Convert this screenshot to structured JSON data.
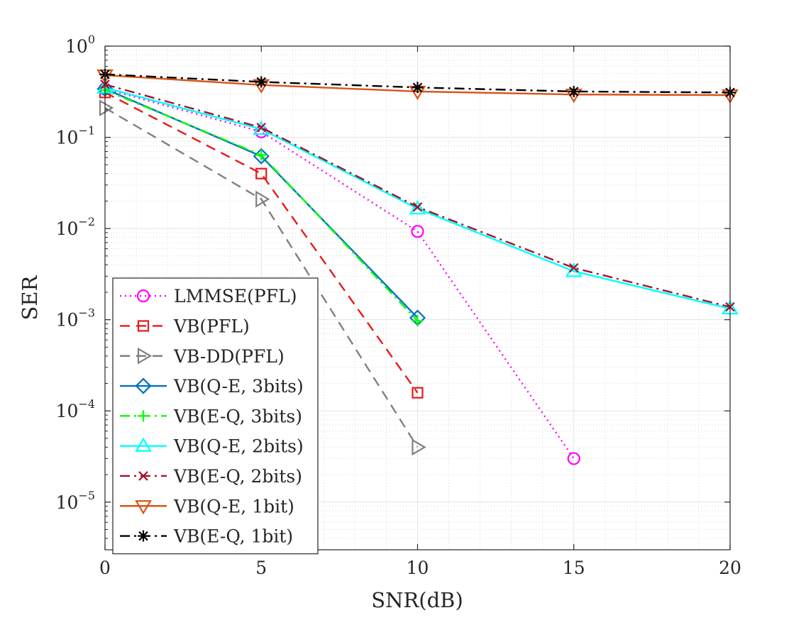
{
  "chart_data": {
    "type": "line",
    "title": "",
    "xlabel": "SNR(dB)",
    "ylabel": "SER",
    "xscale": "linear",
    "yscale": "log",
    "xlim": [
      0,
      20
    ],
    "ylim": [
      3e-06,
      1
    ],
    "grid": true,
    "minor_grid": true,
    "legend_position": "bottom-left",
    "x_ticks": [
      {
        "value": 0,
        "label": "0"
      },
      {
        "value": 5,
        "label": "5"
      },
      {
        "value": 10,
        "label": "10"
      },
      {
        "value": 15,
        "label": "15"
      },
      {
        "value": 20,
        "label": "20"
      }
    ],
    "y_ticks": [
      {
        "value": 1,
        "base": "10",
        "exp": "0"
      },
      {
        "value": 0.1,
        "base": "10",
        "exp": "−1"
      },
      {
        "value": 0.01,
        "base": "10",
        "exp": "−2"
      },
      {
        "value": 0.001,
        "base": "10",
        "exp": "−3"
      },
      {
        "value": 0.0001,
        "base": "10",
        "exp": "−4"
      },
      {
        "value": 1e-05,
        "base": "10",
        "exp": "−5"
      }
    ],
    "series": [
      {
        "name": "LMMSE(PFL)",
        "color": "#ff00ff",
        "dash": "dot",
        "marker": "circle",
        "x": [
          0,
          5,
          10,
          15
        ],
        "y": [
          0.34,
          0.115,
          0.0093,
          3e-05
        ]
      },
      {
        "name": "VB(PFL)",
        "color": "#e8191a",
        "dash": "dash",
        "marker": "square",
        "x": [
          0,
          5,
          10
        ],
        "y": [
          0.31,
          0.04,
          0.000158
        ]
      },
      {
        "name": "VB-DD(PFL)",
        "color": "#808080",
        "dash": "dash",
        "marker": "triangle-right",
        "x": [
          0,
          5,
          10
        ],
        "y": [
          0.21,
          0.021,
          4e-05
        ]
      },
      {
        "name": "VB(Q-E, 3bits)",
        "color": "#0072bd",
        "dash": "solid",
        "marker": "diamond",
        "x": [
          0,
          5,
          10
        ],
        "y": [
          0.34,
          0.062,
          0.00105
        ]
      },
      {
        "name": "VB(E-Q, 3bits)",
        "color": "#00ff00",
        "dash": "dashdot",
        "marker": "plus",
        "x": [
          0,
          5,
          10
        ],
        "y": [
          0.33,
          0.064,
          0.00097
        ]
      },
      {
        "name": "VB(Q-E, 2bits)",
        "color": "#00ffff",
        "dash": "solid",
        "marker": "triangle-up",
        "x": [
          0,
          5,
          10,
          15,
          20
        ],
        "y": [
          0.35,
          0.123,
          0.0165,
          0.0034,
          0.00132
        ]
      },
      {
        "name": "VB(E-Q, 2bits)",
        "color": "#a2142f",
        "dash": "dashdot",
        "marker": "x",
        "x": [
          0,
          5,
          10,
          15,
          20
        ],
        "y": [
          0.38,
          0.128,
          0.0172,
          0.0037,
          0.00138
        ]
      },
      {
        "name": "VB(Q-E, 1bit)",
        "color": "#d95319",
        "dash": "solid",
        "marker": "triangle-down",
        "x": [
          0,
          5,
          10,
          15,
          20
        ],
        "y": [
          0.48,
          0.375,
          0.318,
          0.295,
          0.29
        ]
      },
      {
        "name": "VB(E-Q, 1bit)",
        "color": "#000000",
        "dash": "dashdot",
        "marker": "asterisk",
        "x": [
          0,
          5,
          10,
          15,
          20
        ],
        "y": [
          0.49,
          0.405,
          0.352,
          0.318,
          0.31
        ]
      }
    ]
  }
}
